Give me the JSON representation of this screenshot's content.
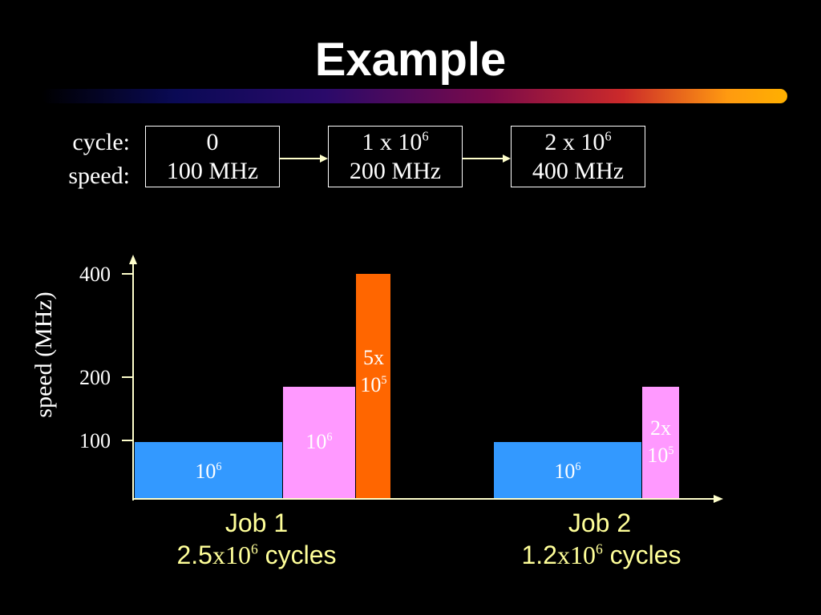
{
  "slide": {
    "title": "Example"
  },
  "header": {
    "cycle_label": "cycle:",
    "speed_label": "speed:",
    "boxes": [
      {
        "cycle_base": "0",
        "cycle_exp": "",
        "speed": "100 MHz"
      },
      {
        "cycle_base": "1 x 10",
        "cycle_exp": "6",
        "speed": "200 MHz"
      },
      {
        "cycle_base": "2 x 10",
        "cycle_exp": "6",
        "speed": "400 MHz"
      }
    ]
  },
  "chart": {
    "ylabel": "speed (MHz)",
    "ticks": [
      "400",
      "200",
      "100"
    ],
    "tick_values": [
      400,
      200,
      100
    ],
    "segments": [
      {
        "job": 1,
        "speed": 100,
        "cycles": 1000000,
        "label_line1": "10",
        "label_exp": "6",
        "label_line2": "",
        "color": "#3399ff"
      },
      {
        "job": 1,
        "speed": 200,
        "cycles": 1000000,
        "label_line1": "10",
        "label_exp": "6",
        "label_line2": "",
        "color": "#ff99ff"
      },
      {
        "job": 1,
        "speed": 400,
        "cycles": 500000,
        "label_line1": "5x",
        "label_exp": "5",
        "label_line2": "10",
        "color": "#ff6600"
      },
      {
        "job": 2,
        "speed": 100,
        "cycles": 1000000,
        "label_line1": "10",
        "label_exp": "6",
        "label_line2": "",
        "color": "#3399ff"
      },
      {
        "job": 2,
        "speed": 200,
        "cycles": 200000,
        "label_line1": "2x",
        "label_exp": "5",
        "label_line2": "10",
        "color": "#ff99ff"
      }
    ]
  },
  "jobs": [
    {
      "name": "Job 1",
      "cycles_prefix": "2.5",
      "cycles_times": "x10",
      "cycles_exp": "6",
      "cycles_suffix": " cycles"
    },
    {
      "name": "Job 2",
      "cycles_prefix": "1.2",
      "cycles_times": "x10",
      "cycles_exp": "6",
      "cycles_suffix": " cycles"
    }
  ],
  "colors": {
    "background": "#000000",
    "axis": "#ffffcc",
    "job_text": "#ffff99",
    "blue": "#3399ff",
    "pink": "#ff99ff",
    "orange": "#ff6600"
  }
}
